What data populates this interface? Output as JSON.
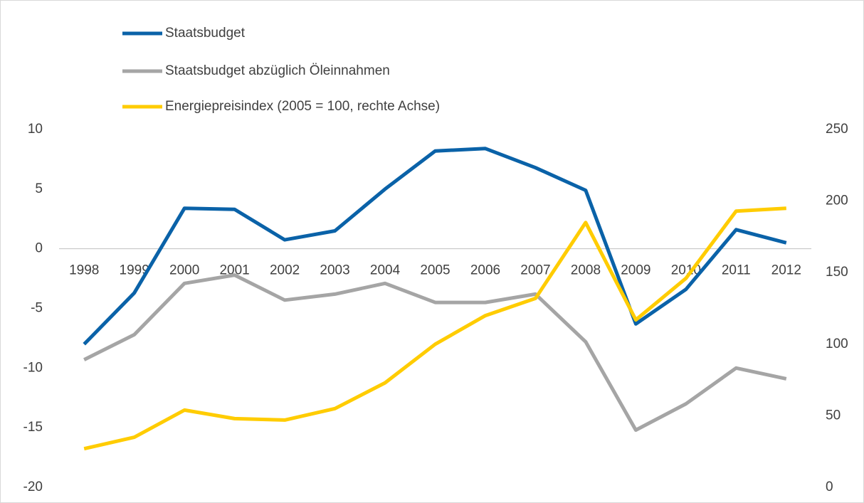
{
  "chart_data": {
    "type": "line",
    "categories": [
      "1998",
      "1999",
      "2000",
      "2001",
      "2002",
      "2003",
      "2004",
      "2005",
      "2006",
      "2007",
      "2008",
      "2009",
      "2010",
      "2011",
      "2012"
    ],
    "series": [
      {
        "name": "Staatsbudget",
        "color": "#0a62a8",
        "values": [
          -8.0,
          -3.7,
          3.4,
          3.3,
          0.75,
          1.5,
          5.0,
          8.2,
          8.4,
          6.8,
          4.9,
          -6.3,
          -3.4,
          1.6,
          0.5
        ]
      },
      {
        "name": "Staatsbudget abzüglich Öleinnahmen",
        "color": "#a5a5a5",
        "values": [
          -9.3,
          -7.2,
          -2.9,
          -2.2,
          -4.3,
          -3.8,
          -2.9,
          -4.5,
          -4.5,
          -3.8,
          -7.8,
          -15.2,
          -13.0,
          -10.0,
          -10.9
        ]
      },
      {
        "name": "Energiepreisindex (2005 = 100, rechte Achse)",
        "color": "#ffcc00",
        "axis": "y2",
        "values": [
          27,
          35,
          54,
          48,
          47,
          55,
          73,
          100,
          120,
          132,
          185,
          117,
          146,
          193,
          195
        ]
      }
    ],
    "ylim": [
      -20,
      10
    ],
    "yticks": [
      -20,
      -15,
      -10,
      -5,
      0,
      5,
      10
    ],
    "y2lim": [
      0,
      250
    ],
    "y2ticks": [
      0,
      50,
      100,
      150,
      200,
      250
    ],
    "legend": "top-left",
    "grid": false
  }
}
